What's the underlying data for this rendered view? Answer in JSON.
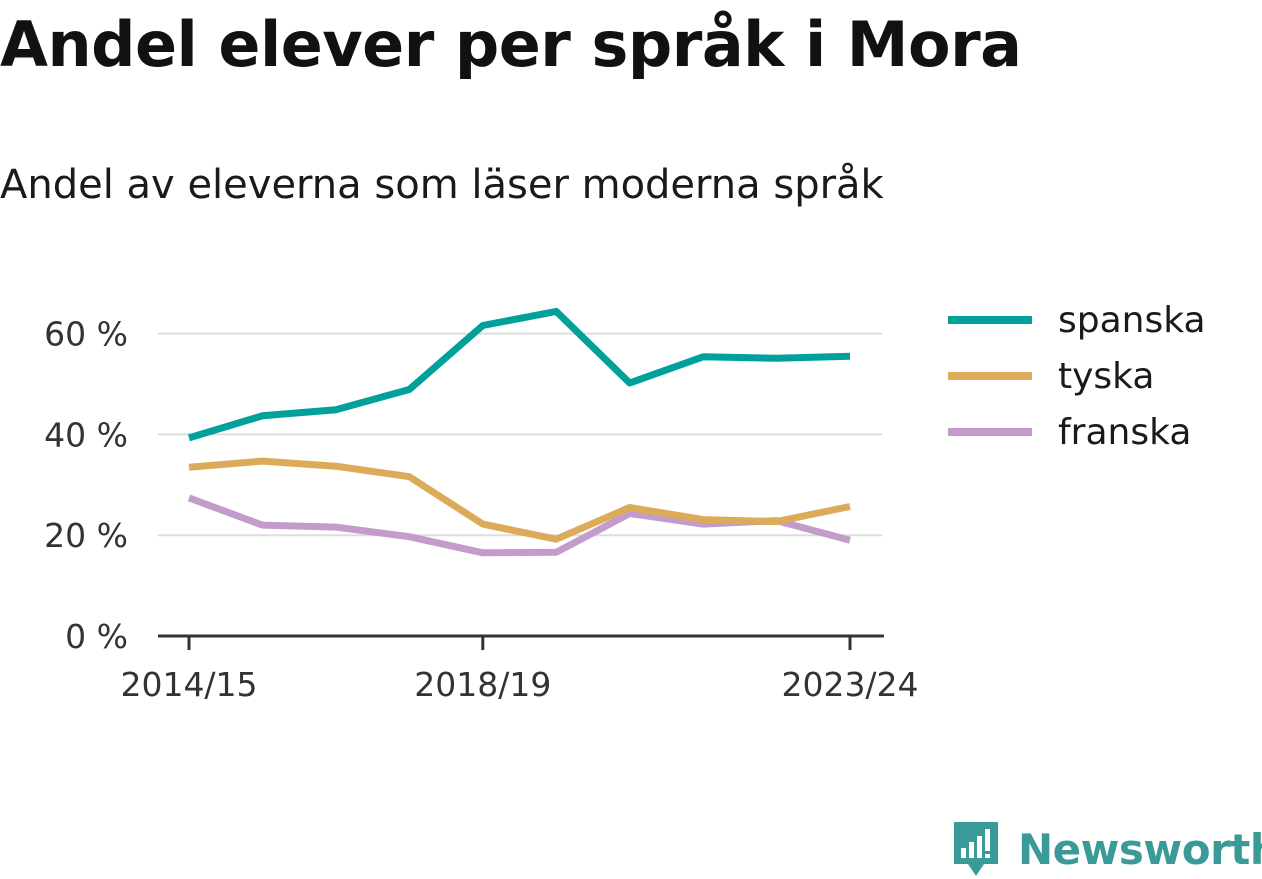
{
  "title": "Andel elever per språk i Mora",
  "subtitle": "Andel av eleverna som läser moderna språk",
  "brand": {
    "name": "Newsworthy",
    "icon": "newsworthy-logo-icon",
    "color": "#3a9a98"
  },
  "chart_data": {
    "type": "line",
    "title": "Andel elever per språk i Mora",
    "subtitle": "Andel av eleverna som läser moderna språk",
    "xlabel": "",
    "ylabel": "",
    "x": [
      "2014/15",
      "2015/16",
      "2016/17",
      "2017/18",
      "2018/19",
      "2019/20",
      "2020/21",
      "2021/22",
      "2022/23",
      "2023/24"
    ],
    "x_tick_labels": [
      "2014/15",
      "2018/19",
      "2023/24"
    ],
    "y_ticks": [
      0,
      20,
      40,
      60
    ],
    "y_tick_labels": [
      "0 %",
      "20 %",
      "40 %",
      "60 %"
    ],
    "ylim": [
      0,
      70
    ],
    "grid": "horizontal",
    "legend_position": "right",
    "series": [
      {
        "name": "spanska",
        "color": "#00a19a",
        "values": [
          39.3,
          43.7,
          44.9,
          48.9,
          61.6,
          64.4,
          50.2,
          55.4,
          55.1,
          55.5
        ]
      },
      {
        "name": "tyska",
        "color": "#dcab59",
        "values": [
          33.5,
          34.7,
          33.7,
          31.6,
          22.2,
          19.2,
          25.5,
          23.1,
          22.7,
          25.7
        ]
      },
      {
        "name": "franska",
        "color": "#c49ccb",
        "values": [
          27.4,
          22.0,
          21.6,
          19.7,
          16.5,
          16.6,
          24.3,
          22.2,
          22.9,
          19.0
        ]
      }
    ]
  }
}
